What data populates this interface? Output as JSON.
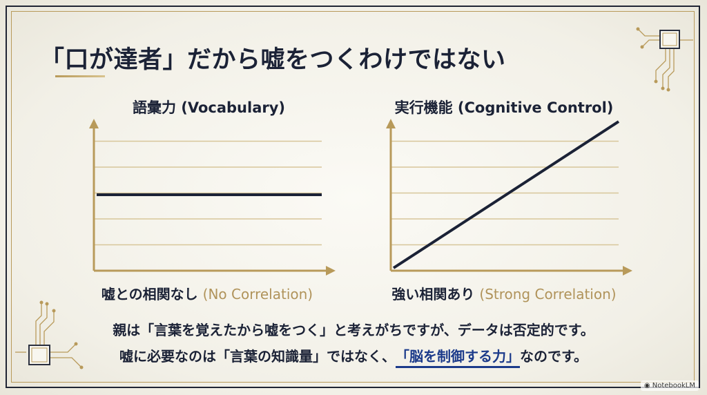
{
  "title": "「口が達者」だから嘘をつくわけではない",
  "colors": {
    "navy": "#1b2236",
    "gold": "#b89a5a",
    "gridline": "#d7c69a",
    "highlight": "#1b3a8a"
  },
  "chart_data": [
    {
      "type": "line",
      "title": "語彙力 (Vocabulary)",
      "xlabel_ja": "嘘との相関なし",
      "xlabel_en": "(No Correlation)",
      "x": [
        0,
        1
      ],
      "y": [
        0.5,
        0.5
      ],
      "xlim": [
        0,
        1
      ],
      "ylim": [
        0,
        1
      ],
      "grid": true
    },
    {
      "type": "line",
      "title": "実行機能 (Cognitive Control)",
      "xlabel_ja": "強い相関あり",
      "xlabel_en": "(Strong Correlation)",
      "x": [
        0,
        1
      ],
      "y": [
        0,
        1
      ],
      "xlim": [
        0,
        1
      ],
      "ylim": [
        0,
        1
      ],
      "grid": true
    }
  ],
  "body": {
    "line1": "親は「言葉を覚えたから嘘をつく」と考えがちですが、データは否定的です。",
    "line2_pre": "嘘に必要なのは「言葉の知識量」ではなく、",
    "line2_highlight": "「脳を制御する力」",
    "line2_post": "なのです。"
  },
  "brand": "NotebookLM"
}
